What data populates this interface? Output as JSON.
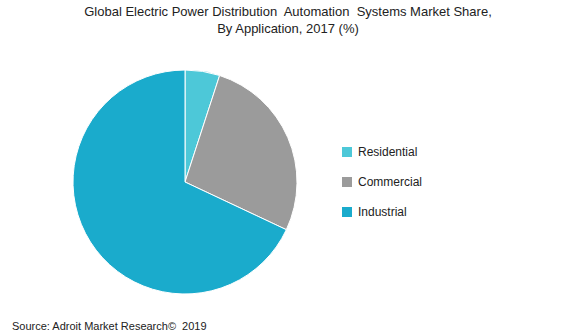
{
  "chart_data": {
    "type": "pie",
    "title": "Global Electric Power Distribution  Automation  Systems Market Share,\nBy Application, 2017 (%)",
    "categories": [
      "Residential",
      "Commercial",
      "Industrial"
    ],
    "values": [
      5,
      27,
      68
    ],
    "colors": [
      "#4dc8d8",
      "#9b9b9b",
      "#1aabcc"
    ],
    "legend": "right",
    "annotations": [
      "Source: Adroit Market Research©  2019"
    ]
  }
}
